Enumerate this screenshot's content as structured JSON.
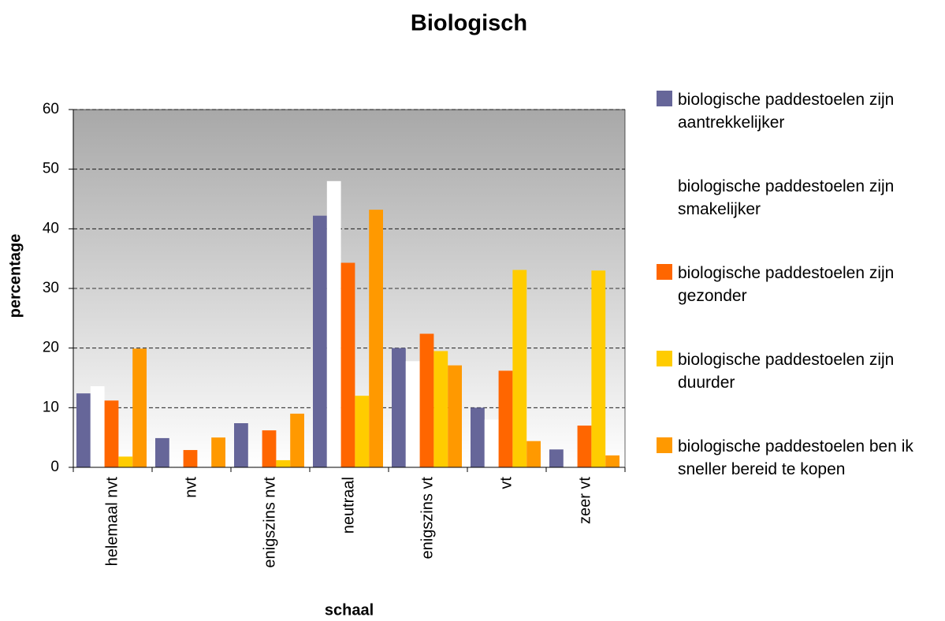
{
  "chart_data": {
    "type": "bar",
    "title": "Biologisch",
    "x_label": "schaal",
    "y_label": "percentage",
    "categories": [
      "helemaal nvt",
      "nvt",
      "enigszins nvt",
      "neutraal",
      "enigszins vt",
      "vt",
      "zeer vt"
    ],
    "series": [
      {
        "name": "biologische paddestoelen zijn aantrekkelijker",
        "color": "#666699",
        "values": [
          12.4,
          4.9,
          7.4,
          42.2,
          20,
          10,
          3
        ]
      },
      {
        "name": "biologische paddestoelen zijn smakelijker",
        "color": "#ffffff",
        "values": [
          13.6,
          0,
          0,
          48,
          17.8,
          8,
          0
        ]
      },
      {
        "name": "biologische paddestoelen zijn gezonder",
        "color": "#ff6600",
        "values": [
          11.2,
          2.9,
          6.2,
          34.3,
          22.4,
          16.2,
          7
        ]
      },
      {
        "name": "biologische paddestoelen zijn duurder",
        "color": "#ffcc00",
        "values": [
          1.8,
          0,
          1.2,
          12,
          19.5,
          33.1,
          33
        ]
      },
      {
        "name": "biologische paddestoelen ben ik sneller bereid te kopen",
        "color": "#ff9900",
        "values": [
          19.9,
          5,
          9,
          43.2,
          17.1,
          4.4,
          2
        ]
      }
    ],
    "ylim": [
      0,
      60
    ],
    "yticks": [
      0,
      10,
      20,
      30,
      40,
      50,
      60
    ],
    "grid": true,
    "legend": "right"
  }
}
